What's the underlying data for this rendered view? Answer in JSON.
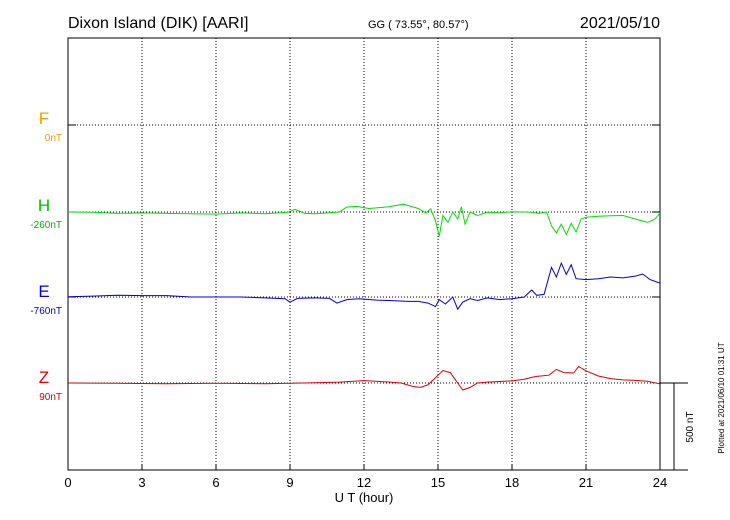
{
  "header": {
    "title": "Dixon Island (DIK)  [AARI]",
    "coords": "GG ( 73.55°,  80.57°)",
    "date": "2021/05/10"
  },
  "side_note": "Plotted at 2021/06/10 01:31  UT",
  "chart_data": {
    "type": "line",
    "xlabel": "U T (hour)",
    "x_ticks": [
      "0",
      "3",
      "6",
      "9",
      "12",
      "15",
      "18",
      "21",
      "24"
    ],
    "xlim": [
      0,
      24
    ],
    "scale_bar": "500 nT",
    "colors": {
      "F": "#f0a000",
      "H": "#00e000",
      "E": "#0000d0",
      "Z": "#e00000"
    },
    "series": [
      {
        "name": "F",
        "baseline_label": "0nT",
        "points": []
      },
      {
        "name": "H",
        "baseline_label": "-260nT",
        "points": [
          [
            0,
            -260
          ],
          [
            1,
            -262
          ],
          [
            2,
            -268
          ],
          [
            3,
            -265
          ],
          [
            4,
            -268
          ],
          [
            5,
            -270
          ],
          [
            6,
            -272
          ],
          [
            7,
            -265
          ],
          [
            8,
            -270
          ],
          [
            8.9,
            -262
          ],
          [
            9.2,
            -245
          ],
          [
            9.6,
            -268
          ],
          [
            10,
            -270
          ],
          [
            11,
            -260
          ],
          [
            11.3,
            -232
          ],
          [
            11.7,
            -228
          ],
          [
            12.2,
            -240
          ],
          [
            13,
            -230
          ],
          [
            13.6,
            -215
          ],
          [
            14.2,
            -240
          ],
          [
            14.5,
            -265
          ],
          [
            14.7,
            -242
          ],
          [
            14.9,
            -310
          ],
          [
            15.05,
            -400
          ],
          [
            15.2,
            -280
          ],
          [
            15.4,
            -320
          ],
          [
            15.6,
            -260
          ],
          [
            15.8,
            -300
          ],
          [
            15.95,
            -230
          ],
          [
            16.1,
            -330
          ],
          [
            16.3,
            -260
          ],
          [
            16.6,
            -280
          ],
          [
            17,
            -262
          ],
          [
            17.5,
            -265
          ],
          [
            18,
            -258
          ],
          [
            18.5,
            -260
          ],
          [
            18.8,
            -262
          ],
          [
            19.1,
            -268
          ],
          [
            19.4,
            -260
          ],
          [
            19.6,
            -340
          ],
          [
            19.8,
            -380
          ],
          [
            20.0,
            -330
          ],
          [
            20.2,
            -390
          ],
          [
            20.4,
            -325
          ],
          [
            20.6,
            -375
          ],
          [
            20.8,
            -300
          ],
          [
            21,
            -290
          ],
          [
            21.5,
            -285
          ],
          [
            22,
            -282
          ],
          [
            22.5,
            -280
          ],
          [
            23,
            -300
          ],
          [
            23.5,
            -320
          ],
          [
            23.8,
            -300
          ],
          [
            24,
            -265
          ]
        ]
      },
      {
        "name": "E",
        "baseline_label": "-760nT",
        "points": [
          [
            0,
            -758
          ],
          [
            1,
            -755
          ],
          [
            2,
            -750
          ],
          [
            3,
            -752
          ],
          [
            4,
            -752
          ],
          [
            5,
            -760
          ],
          [
            6,
            -760
          ],
          [
            7,
            -760
          ],
          [
            8,
            -765
          ],
          [
            8.8,
            -770
          ],
          [
            9.0,
            -790
          ],
          [
            9.3,
            -768
          ],
          [
            10,
            -765
          ],
          [
            10.6,
            -768
          ],
          [
            10.9,
            -795
          ],
          [
            11.3,
            -775
          ],
          [
            11.8,
            -770
          ],
          [
            12.5,
            -778
          ],
          [
            13,
            -780
          ],
          [
            13.8,
            -785
          ],
          [
            14.2,
            -785
          ],
          [
            14.6,
            -795
          ],
          [
            14.9,
            -815
          ],
          [
            15.05,
            -775
          ],
          [
            15.3,
            -800
          ],
          [
            15.6,
            -760
          ],
          [
            15.8,
            -830
          ],
          [
            16.0,
            -790
          ],
          [
            16.3,
            -770
          ],
          [
            16.6,
            -780
          ],
          [
            17,
            -765
          ],
          [
            17.5,
            -775
          ],
          [
            18,
            -770
          ],
          [
            18.5,
            -760
          ],
          [
            18.8,
            -720
          ],
          [
            19.0,
            -750
          ],
          [
            19.3,
            -745
          ],
          [
            19.6,
            -590
          ],
          [
            19.8,
            -645
          ],
          [
            20.0,
            -565
          ],
          [
            20.2,
            -630
          ],
          [
            20.4,
            -575
          ],
          [
            20.6,
            -655
          ],
          [
            21,
            -660
          ],
          [
            21.5,
            -655
          ],
          [
            22,
            -645
          ],
          [
            22.5,
            -650
          ],
          [
            23,
            -640
          ],
          [
            23.3,
            -628
          ],
          [
            23.6,
            -660
          ],
          [
            24,
            -680
          ]
        ]
      },
      {
        "name": "Z",
        "baseline_label": "90nT",
        "points": [
          [
            0,
            90
          ],
          [
            2,
            88
          ],
          [
            4,
            86
          ],
          [
            6,
            88
          ],
          [
            8,
            86
          ],
          [
            10,
            92
          ],
          [
            11,
            95
          ],
          [
            12,
            104
          ],
          [
            12.5,
            100
          ],
          [
            13,
            96
          ],
          [
            13.5,
            90
          ],
          [
            14,
            70
          ],
          [
            14.3,
            65
          ],
          [
            14.6,
            80
          ],
          [
            15.0,
            135
          ],
          [
            15.2,
            162
          ],
          [
            15.5,
            150
          ],
          [
            15.8,
            90
          ],
          [
            16.0,
            50
          ],
          [
            16.3,
            65
          ],
          [
            16.6,
            90
          ],
          [
            17,
            95
          ],
          [
            18,
            102
          ],
          [
            18.5,
            112
          ],
          [
            18.8,
            122
          ],
          [
            19,
            128
          ],
          [
            19.5,
            135
          ],
          [
            19.8,
            168
          ],
          [
            20.1,
            150
          ],
          [
            20.5,
            148
          ],
          [
            20.7,
            185
          ],
          [
            21,
            160
          ],
          [
            21.5,
            130
          ],
          [
            22,
            115
          ],
          [
            22.5,
            108
          ],
          [
            23,
            105
          ],
          [
            23.5,
            100
          ],
          [
            24,
            85
          ]
        ]
      }
    ]
  }
}
